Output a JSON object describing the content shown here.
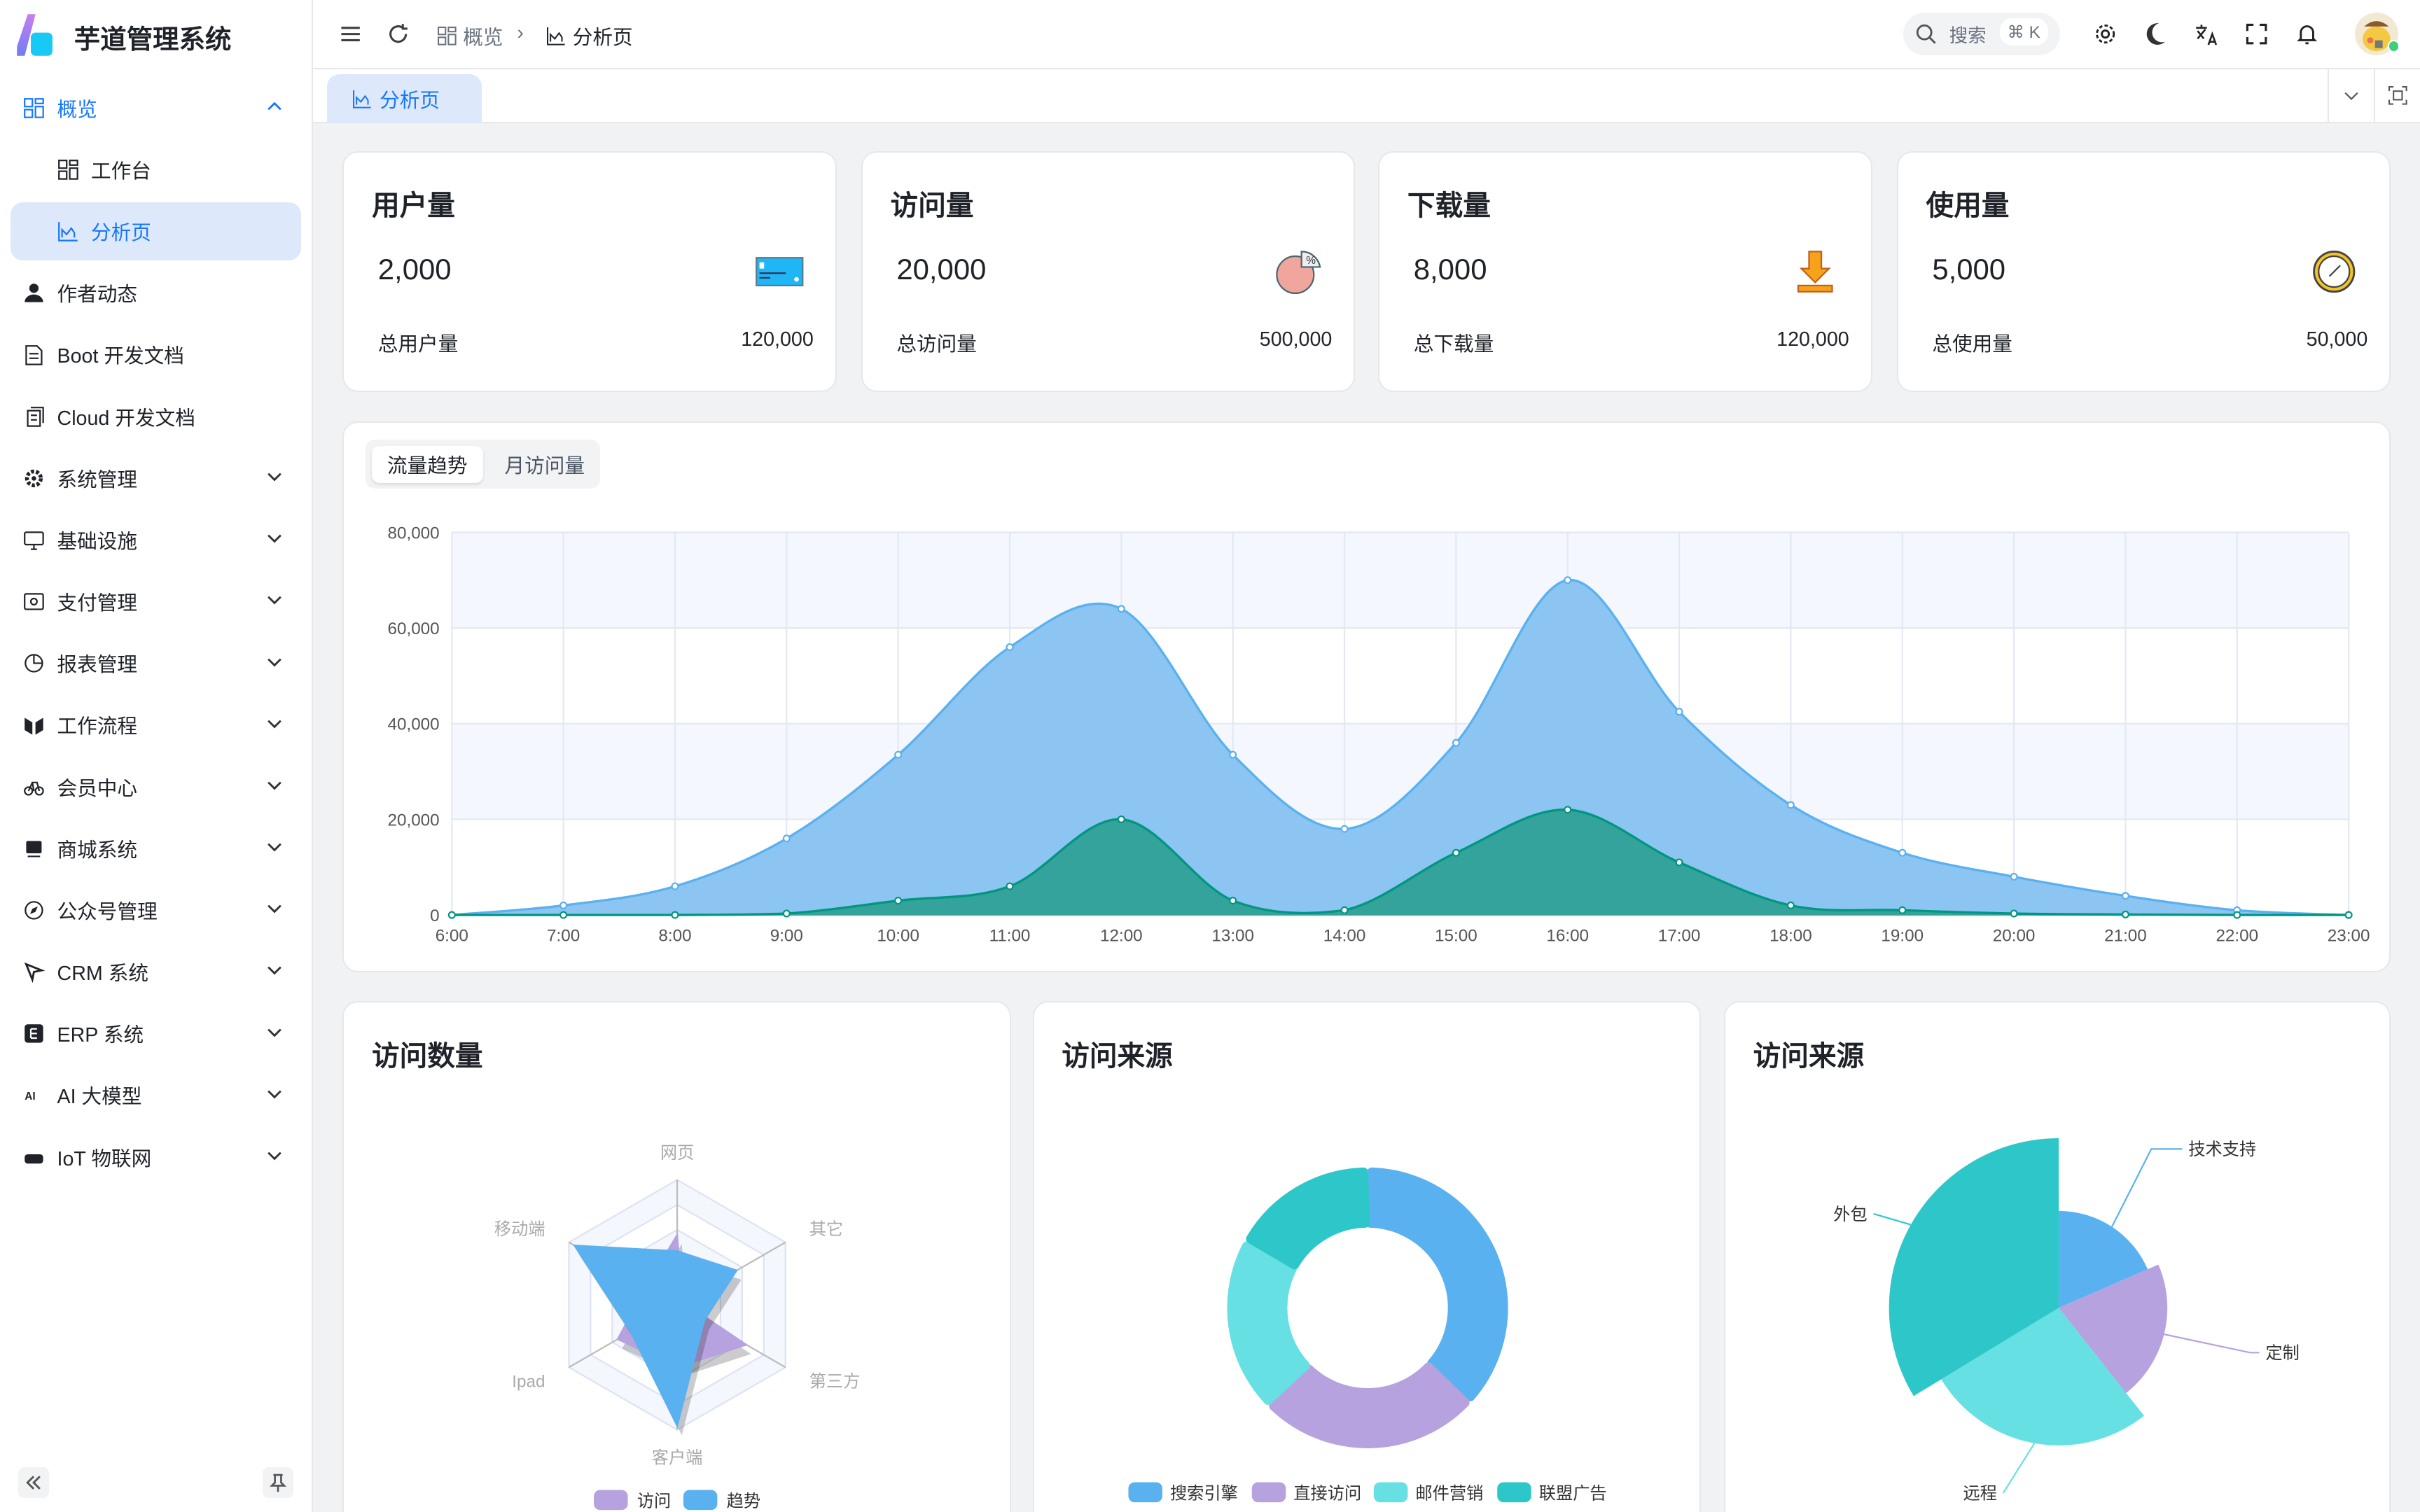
{
  "app": {
    "title": "芋道管理系统"
  },
  "sidebar": {
    "items": [
      {
        "label": "概览",
        "icon": "dashboard-icon",
        "state": "open"
      },
      {
        "label": "工作台",
        "icon": "workspace-icon",
        "sub": true
      },
      {
        "label": "分析页",
        "icon": "chart-line-icon",
        "sub": true,
        "active": true
      },
      {
        "label": "作者动态",
        "icon": "user-icon"
      },
      {
        "label": "Boot 开发文档",
        "icon": "document-icon"
      },
      {
        "label": "Cloud 开发文档",
        "icon": "documents-icon"
      },
      {
        "label": "系统管理",
        "icon": "gear-icon",
        "expandable": true
      },
      {
        "label": "基础设施",
        "icon": "monitor-icon",
        "expandable": true
      },
      {
        "label": "支付管理",
        "icon": "payment-icon",
        "expandable": true
      },
      {
        "label": "报表管理",
        "icon": "pie-chart-icon",
        "expandable": true
      },
      {
        "label": "工作流程",
        "icon": "workflow-icon",
        "expandable": true
      },
      {
        "label": "会员中心",
        "icon": "bicycle-icon",
        "expandable": true
      },
      {
        "label": "商城系统",
        "icon": "store-icon",
        "expandable": true
      },
      {
        "label": "公众号管理",
        "icon": "compass-icon",
        "expandable": true
      },
      {
        "label": "CRM 系统",
        "icon": "crm-icon",
        "expandable": true
      },
      {
        "label": "ERP 系统",
        "icon": "erp-icon",
        "expandable": true
      },
      {
        "label": "AI 大模型",
        "icon": "ai-icon",
        "expandable": true
      },
      {
        "label": "IoT 物联网",
        "icon": "router-icon",
        "expandable": true
      }
    ]
  },
  "header": {
    "breadcrumb": [
      "概览",
      "分析页"
    ],
    "search_placeholder": "搜索",
    "search_shortcut": "⌘ K"
  },
  "tabs": [
    {
      "label": "分析页"
    }
  ],
  "stats": [
    {
      "title": "用户量",
      "value": "2,000",
      "footer_label": "总用户量",
      "footer_value": "120,000",
      "icon": "credit-card-icon"
    },
    {
      "title": "访问量",
      "value": "20,000",
      "footer_label": "总访问量",
      "footer_value": "500,000",
      "icon": "pie-percent-icon"
    },
    {
      "title": "下载量",
      "value": "8,000",
      "footer_label": "总下载量",
      "footer_value": "120,000",
      "icon": "download-icon"
    },
    {
      "title": "使用量",
      "value": "5,000",
      "footer_label": "总使用量",
      "footer_value": "50,000",
      "icon": "clock-icon"
    }
  ],
  "trend_tabs": [
    "流量趋势",
    "月访问量"
  ],
  "chart_data": [
    {
      "type": "area",
      "x": [
        "6:00",
        "7:00",
        "8:00",
        "9:00",
        "10:00",
        "11:00",
        "12:00",
        "13:00",
        "14:00",
        "15:00",
        "16:00",
        "17:00",
        "18:00",
        "19:00",
        "20:00",
        "21:00",
        "22:00",
        "23:00"
      ],
      "yticks": [
        "0",
        "20,000",
        "40,000",
        "60,000",
        "80,000"
      ],
      "ylim": [
        0,
        80000
      ],
      "grid": true,
      "series": [
        {
          "values": [
            0,
            2000,
            6000,
            16000,
            33500,
            56000,
            64000,
            33500,
            18000,
            36000,
            70000,
            42500,
            23000,
            13000,
            8000,
            4000,
            1000,
            0
          ],
          "color": "#5ab1ef"
        },
        {
          "values": [
            0,
            0,
            0,
            300,
            3000,
            6000,
            20000,
            3000,
            1000,
            13000,
            22000,
            11000,
            2000,
            1000,
            300,
            100,
            0,
            0
          ],
          "color": "#019680"
        }
      ]
    },
    {
      "type": "radar",
      "title": "访问数量",
      "indicators": [
        "网页",
        "移动端",
        "Ipad",
        "客户端",
        "第三方",
        "其它"
      ],
      "max": 100,
      "series": [
        {
          "name": "访问",
          "values": [
            56,
            29,
            55,
            50,
            64,
            5
          ],
          "color": "#b6a2de"
        },
        {
          "name": "趋势",
          "values": [
            43,
            95,
            43,
            97,
            25,
            55
          ],
          "color": "#5ab1ef"
        }
      ],
      "legend": "bottom"
    },
    {
      "type": "pie",
      "title": "访问来源",
      "donut": true,
      "categories": [
        "搜索引擎",
        "直接访问",
        "邮件营销",
        "联盟广告"
      ],
      "values": [
        1048,
        735,
        580,
        484
      ],
      "colors": [
        "#5ab1ef",
        "#b6a2de",
        "#67e0e3",
        "#2ec7c9"
      ],
      "legend": "bottom"
    },
    {
      "type": "pie",
      "title": "访问来源",
      "rose": true,
      "categories": [
        "技术支持",
        "定制",
        "远程",
        "外包"
      ],
      "values": [
        274,
        310,
        400,
        500
      ],
      "colors": [
        "#5ab1ef",
        "#b6a2de",
        "#67e0e3",
        "#2ec7c9"
      ]
    }
  ]
}
